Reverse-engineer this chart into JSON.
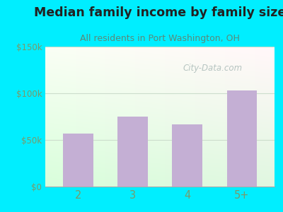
{
  "categories": [
    "2",
    "3",
    "4",
    "5+"
  ],
  "values": [
    57000,
    75000,
    67000,
    103000
  ],
  "bar_color": "#c4afd4",
  "title": "Median family income by family size",
  "subtitle": "All residents in Port Washington, OH",
  "title_color": "#222222",
  "subtitle_color": "#5a8a7a",
  "title_fontsize": 12.5,
  "subtitle_fontsize": 9.0,
  "ylim": [
    0,
    150000
  ],
  "yticks": [
    0,
    50000,
    100000,
    150000
  ],
  "ytick_labels": [
    "$0",
    "$50k",
    "$100k",
    "$150k"
  ],
  "outer_bg": "#00eeff",
  "watermark": "City-Data.com",
  "xtick_color": "#7a9a6a",
  "ytick_color": "#7a9a6a",
  "grid_color": "#ccddcc",
  "bottom_spine_color": "#aaaaaa"
}
